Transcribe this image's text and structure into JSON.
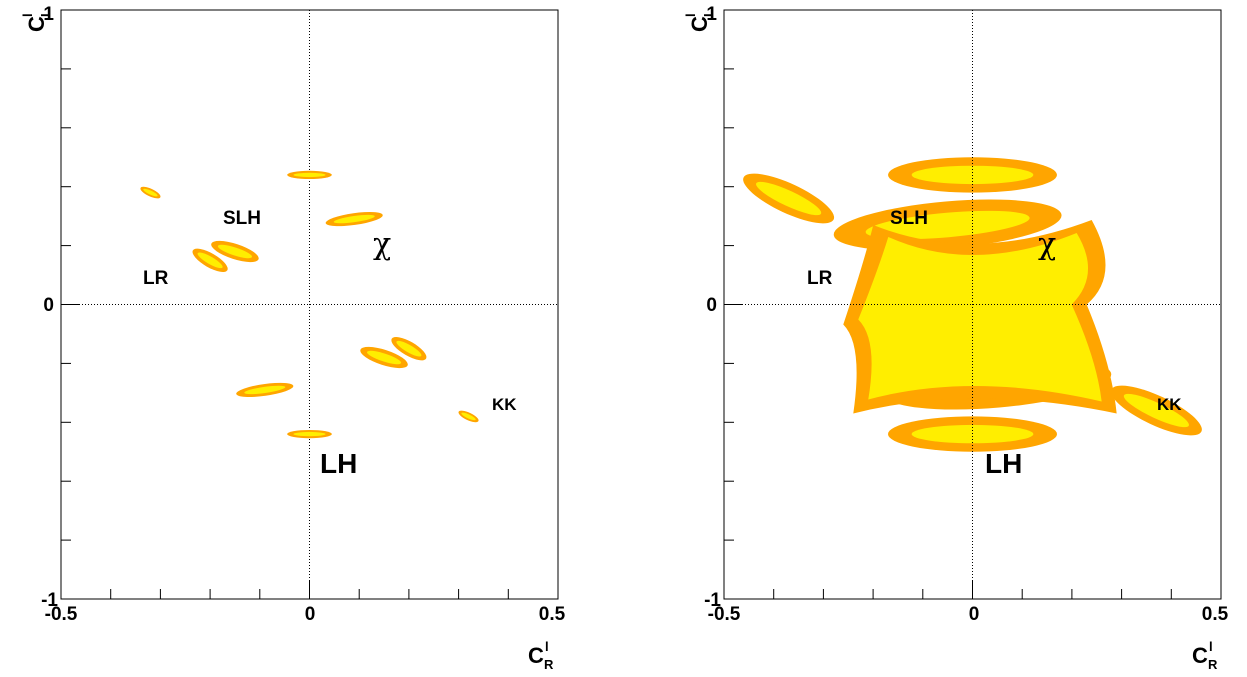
{
  "colors": {
    "outer_region": "#ffa500",
    "inner_region": "#ffee00",
    "frame": "#000000",
    "zero_lines": "#000000"
  },
  "axis_labels": {
    "y_main": "C",
    "y_sub": "L",
    "y_sup": "l",
    "x_main": "C",
    "x_sub": "R",
    "x_sup": "l"
  },
  "x_ticks": [
    "-0.5",
    "0",
    "0.5"
  ],
  "y_ticks": [
    "1",
    "0",
    "-1"
  ],
  "labels": {
    "lh": "LH",
    "slh": "SLH",
    "lr": "LR",
    "kk": "KK",
    "chi": "χ"
  },
  "chart_data": [
    {
      "type": "scatter",
      "style": "confidence-region contours",
      "xlabel": "C_R^l",
      "ylabel": "C_L^l",
      "xlim": [
        -0.5,
        0.5
      ],
      "ylim": [
        -1,
        1
      ],
      "grid": "dotted zero lines",
      "regions": [
        {
          "center": [
            0.0,
            0.44
          ],
          "rx": 0.045,
          "ry": 0.014,
          "angle_deg": 0
        },
        {
          "center": [
            0.09,
            0.29
          ],
          "rx": 0.058,
          "ry": 0.02,
          "angle_deg": -8
        },
        {
          "center": [
            -0.32,
            0.38
          ],
          "rx": 0.022,
          "ry": 0.013,
          "angle_deg": 25
        },
        {
          "center": [
            -0.15,
            0.18
          ],
          "rx": 0.05,
          "ry": 0.026,
          "angle_deg": 18
        },
        {
          "center": [
            -0.2,
            0.15
          ],
          "rx": 0.04,
          "ry": 0.024,
          "angle_deg": 30
        },
        {
          "center": [
            0.15,
            -0.18
          ],
          "rx": 0.05,
          "ry": 0.026,
          "angle_deg": 18
        },
        {
          "center": [
            0.2,
            -0.15
          ],
          "rx": 0.04,
          "ry": 0.024,
          "angle_deg": 30
        },
        {
          "center": [
            -0.09,
            -0.29
          ],
          "rx": 0.058,
          "ry": 0.02,
          "angle_deg": -8
        },
        {
          "center": [
            0.0,
            -0.44
          ],
          "rx": 0.045,
          "ry": 0.014,
          "angle_deg": 0
        },
        {
          "center": [
            0.32,
            -0.38
          ],
          "rx": 0.022,
          "ry": 0.013,
          "angle_deg": 25
        }
      ],
      "annotations": [
        {
          "text": "SLH",
          "x": -0.12,
          "y": 0.29
        },
        {
          "text": "χ",
          "x": 0.15,
          "y": 0.21
        },
        {
          "text": "LR",
          "x": -0.31,
          "y": 0.09
        },
        {
          "text": "KK",
          "x": 0.4,
          "y": -0.34
        },
        {
          "text": "LH",
          "x": 0.04,
          "y": -0.55
        }
      ]
    },
    {
      "type": "scatter",
      "style": "confidence-region contours",
      "xlabel": "C_R^l",
      "ylabel": "C_L^l",
      "xlim": [
        -0.5,
        0.5
      ],
      "ylim": [
        -1,
        1
      ],
      "grid": "dotted zero lines",
      "regions": [
        {
          "center": [
            0.0,
            0.44
          ],
          "rx": 0.17,
          "ry": 0.06,
          "angle_deg": 0
        },
        {
          "center": [
            -0.37,
            0.36
          ],
          "rx": 0.1,
          "ry": 0.05,
          "angle_deg": 25
        },
        {
          "center": [
            0.37,
            -0.36
          ],
          "rx": 0.1,
          "ry": 0.05,
          "angle_deg": 25
        },
        {
          "center": [
            0.0,
            -0.44
          ],
          "rx": 0.17,
          "ry": 0.06,
          "angle_deg": 0
        },
        {
          "center": [
            -0.05,
            0.27
          ],
          "rx": 0.23,
          "ry": 0.08,
          "angle_deg": -5
        },
        {
          "center": [
            0.05,
            -0.27
          ],
          "rx": 0.23,
          "ry": 0.08,
          "angle_deg": -5
        },
        {
          "center": [
            0.0,
            0.0
          ],
          "type": "central-region",
          "x_extent": [
            -0.26,
            0.28
          ],
          "y_extent": [
            -0.37,
            0.27
          ]
        }
      ],
      "annotations": [
        {
          "text": "SLH",
          "x": -0.12,
          "y": 0.29
        },
        {
          "text": "χ",
          "x": 0.15,
          "y": 0.21
        },
        {
          "text": "LR",
          "x": -0.31,
          "y": 0.09
        },
        {
          "text": "KK",
          "x": 0.4,
          "y": -0.34
        },
        {
          "text": "LH",
          "x": 0.04,
          "y": -0.55
        }
      ]
    }
  ]
}
